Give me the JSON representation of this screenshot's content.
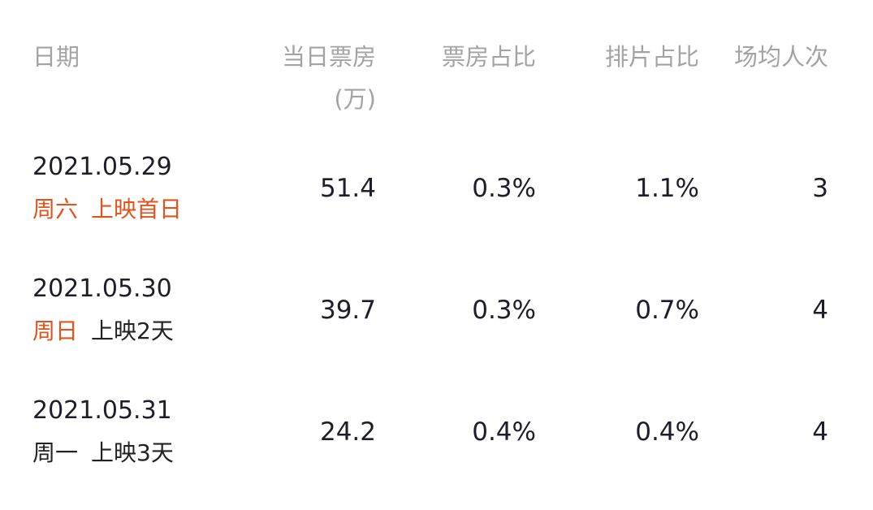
{
  "header": {
    "date": "日期",
    "box_office": "当日票房",
    "box_office_unit": "(万)",
    "box_share": "票房占比",
    "screen_share": "排片占比",
    "avg_people": "场均人次"
  },
  "colors": {
    "accent": "#e0541e",
    "header_text": "#a3a3a3",
    "body_text": "#1e1e2a"
  },
  "rows": [
    {
      "date": "2021.05.29",
      "weekday": "周六",
      "days": "上映首日",
      "weekend": true,
      "highlight_days": true,
      "box_office": "51.4",
      "box_share": "0.3%",
      "screen_share": "1.1%",
      "avg_people": "3"
    },
    {
      "date": "2021.05.30",
      "weekday": "周日",
      "days": "上映2天",
      "weekend": true,
      "highlight_days": false,
      "box_office": "39.7",
      "box_share": "0.3%",
      "screen_share": "0.7%",
      "avg_people": "4"
    },
    {
      "date": "2021.05.31",
      "weekday": "周一",
      "days": "上映3天",
      "weekend": false,
      "highlight_days": false,
      "box_office": "24.2",
      "box_share": "0.4%",
      "screen_share": "0.4%",
      "avg_people": "4"
    }
  ]
}
